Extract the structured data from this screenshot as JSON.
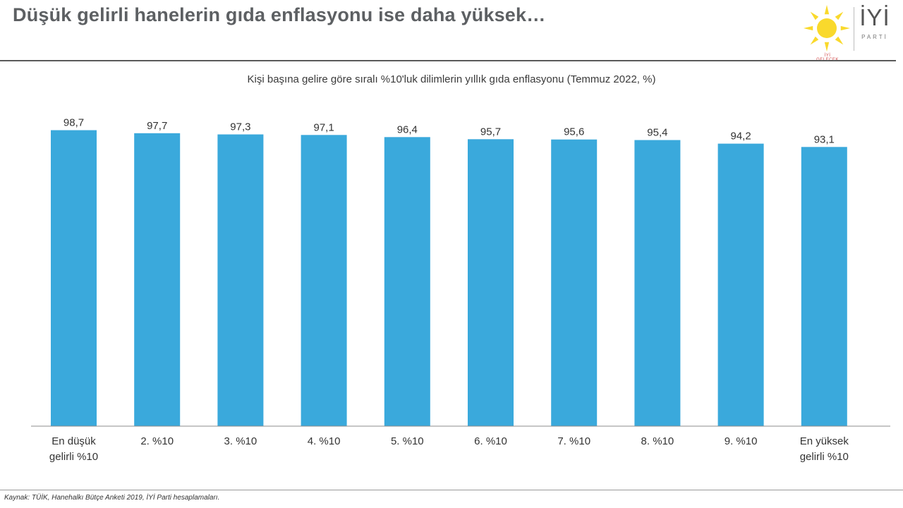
{
  "header": {
    "title": "Düşük gelirli hanelerin gıda enflasyonu ise daha yüksek…"
  },
  "logo": {
    "word": "İYİ",
    "sub": "PARTİ",
    "tag": "İYİ GELECEK",
    "icon": "sun-icon",
    "sun_color": "#f9d92c"
  },
  "chart_data": {
    "type": "bar",
    "title": "Kişi başına gelire göre sıralı %10'luk dilimlerin yıllık gıda enflasyonu (Temmuz 2022, %)",
    "categories": [
      [
        "En düşük",
        "gelirli %10"
      ],
      [
        "2. %10"
      ],
      [
        "3. %10"
      ],
      [
        "4. %10"
      ],
      [
        "5. %10"
      ],
      [
        "6. %10"
      ],
      [
        "7. %10"
      ],
      [
        "8. %10"
      ],
      [
        "9. %10"
      ],
      [
        "En yüksek",
        "gelirli %10"
      ]
    ],
    "values": [
      98.7,
      97.7,
      97.3,
      97.1,
      96.4,
      95.7,
      95.6,
      95.4,
      94.2,
      93.1
    ],
    "value_labels": [
      "98,7",
      "97,7",
      "97,3",
      "97,1",
      "96,4",
      "95,7",
      "95,6",
      "95,4",
      "94,2",
      "93,1"
    ],
    "xlabel": "",
    "ylabel": "",
    "ylim": [
      0,
      100
    ],
    "grid": false,
    "legend": "none",
    "bar_color": "#3aa9dc"
  },
  "footer": {
    "source": "Kaynak: TÜİK, Hanehalkı Bütçe Anketi 2019, İYİ Parti hesaplamaları."
  }
}
